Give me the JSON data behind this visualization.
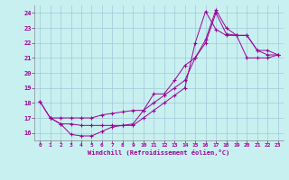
{
  "xlabel": "Windchill (Refroidissement éolien,°C)",
  "background_color": "#c8f0f0",
  "line_color": "#990099",
  "grid_color": "#a0c8d8",
  "xlim": [
    -0.5,
    23.5
  ],
  "ylim": [
    15.5,
    24.5
  ],
  "xticks": [
    0,
    1,
    2,
    3,
    4,
    5,
    6,
    7,
    8,
    9,
    10,
    11,
    12,
    13,
    14,
    15,
    16,
    17,
    18,
    19,
    20,
    21,
    22,
    23
  ],
  "yticks": [
    16,
    17,
    18,
    19,
    20,
    21,
    22,
    23,
    24
  ],
  "line1_x": [
    0,
    1,
    2,
    3,
    4,
    5,
    6,
    7,
    8,
    9,
    10,
    11,
    12,
    13,
    14,
    15,
    16,
    17,
    18,
    19,
    20,
    21,
    22,
    23
  ],
  "line1_y": [
    18.1,
    17.0,
    16.6,
    15.9,
    15.8,
    15.8,
    16.1,
    16.4,
    16.5,
    16.6,
    17.5,
    18.6,
    18.6,
    19.5,
    20.5,
    21.0,
    22.0,
    24.0,
    22.6,
    22.5,
    21.0,
    21.0,
    21.0,
    21.2
  ],
  "line2_x": [
    0,
    1,
    2,
    3,
    4,
    5,
    6,
    7,
    8,
    9,
    10,
    11,
    12,
    13,
    14,
    15,
    16,
    17,
    18,
    19,
    20,
    21,
    22,
    23
  ],
  "line2_y": [
    18.1,
    17.0,
    17.0,
    17.0,
    17.0,
    17.0,
    17.2,
    17.3,
    17.4,
    17.5,
    17.5,
    18.0,
    18.5,
    19.0,
    19.5,
    21.0,
    22.2,
    24.2,
    23.0,
    22.5,
    22.5,
    21.5,
    21.5,
    21.2
  ],
  "line3_x": [
    1,
    2,
    3,
    4,
    5,
    6,
    7,
    8,
    9,
    10,
    11,
    12,
    13,
    14,
    15,
    16,
    17,
    18,
    19,
    20,
    21,
    22,
    23
  ],
  "line3_y": [
    17.0,
    16.6,
    16.6,
    16.5,
    16.5,
    16.5,
    16.5,
    16.5,
    16.5,
    17.0,
    17.5,
    18.0,
    18.5,
    19.0,
    22.0,
    24.1,
    22.9,
    22.5,
    22.5,
    22.5,
    21.5,
    21.2,
    21.2
  ]
}
